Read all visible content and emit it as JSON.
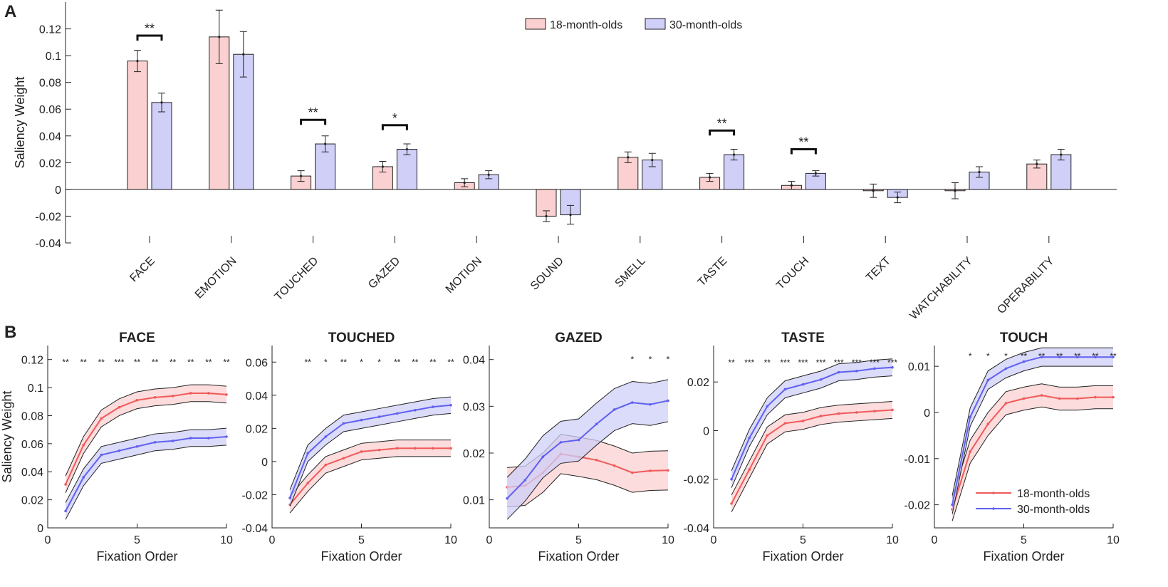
{
  "colors": {
    "c18": "#f08a8a",
    "c30": "#8a8af2",
    "line18": "#f05a5a",
    "line30": "#6060f0",
    "fill18": "#fbd0d0",
    "fill30": "#cfcff8"
  },
  "chart_data": [
    {
      "type": "bar",
      "panel_label": "A",
      "ylabel": "Saliency Weight",
      "ylim": [
        -0.04,
        0.14
      ],
      "yticks": [
        -0.04,
        -0.02,
        0,
        0.02,
        0.04,
        0.06,
        0.08,
        0.1,
        0.12
      ],
      "ytick_labels": [
        "-0.04",
        "-0.02",
        "0",
        "0.02",
        "0.04",
        "0.06",
        "0.08",
        "0.1",
        "0.12"
      ],
      "categories": [
        "FACE",
        "EMOTION",
        "TOUCHED",
        "GAZED",
        "MOTION",
        "SOUND",
        "SMELL",
        "TASTE",
        "TOUCH",
        "TEXT",
        "WATCHABILITY",
        "OPERABILITY"
      ],
      "series": [
        {
          "name": "18-month-olds",
          "values": [
            0.096,
            0.114,
            0.01,
            0.017,
            0.005,
            -0.02,
            0.024,
            0.009,
            0.003,
            -0.001,
            -0.001,
            0.019
          ],
          "errors": [
            0.008,
            0.02,
            0.004,
            0.004,
            0.003,
            0.004,
            0.004,
            0.003,
            0.003,
            0.005,
            0.006,
            0.003
          ]
        },
        {
          "name": "30-month-olds",
          "values": [
            0.065,
            0.101,
            0.034,
            0.03,
            0.011,
            -0.019,
            0.022,
            0.026,
            0.012,
            -0.006,
            0.013,
            0.026
          ],
          "errors": [
            0.007,
            0.017,
            0.006,
            0.004,
            0.003,
            0.007,
            0.005,
            0.004,
            0.002,
            0.004,
            0.004,
            0.004
          ]
        }
      ],
      "significance": [
        {
          "category_index": 0,
          "label": "**",
          "y": 0.115
        },
        {
          "category_index": 2,
          "label": "**",
          "y": 0.052
        },
        {
          "category_index": 3,
          "label": "*",
          "y": 0.048
        },
        {
          "category_index": 7,
          "label": "**",
          "y": 0.044
        },
        {
          "category_index": 8,
          "label": "**",
          "y": 0.03
        }
      ]
    },
    {
      "type": "line",
      "panel_label": "B",
      "title": "FACE",
      "xlabel": "Fixation Order",
      "ylabel": "Saliency Weight",
      "ylim": [
        0,
        0.13
      ],
      "yticks": [
        0,
        0.02,
        0.04,
        0.06,
        0.08,
        0.1,
        0.12
      ],
      "ytick_labels": [
        "0",
        "0.02",
        "0.04",
        "0.06",
        "0.08",
        "0.1",
        "0.12"
      ],
      "xlim": [
        0,
        10
      ],
      "xticks": [
        0,
        5,
        10
      ],
      "xtick_labels": [
        "0",
        "5",
        "10"
      ],
      "x": [
        1,
        2,
        3,
        4,
        5,
        6,
        7,
        8,
        9,
        10
      ],
      "series": [
        {
          "name": "18-month-olds",
          "values": [
            0.031,
            0.059,
            0.078,
            0.086,
            0.091,
            0.093,
            0.094,
            0.096,
            0.096,
            0.095
          ],
          "band": 0.006
        },
        {
          "name": "30-month-olds",
          "values": [
            0.012,
            0.036,
            0.052,
            0.055,
            0.058,
            0.061,
            0.062,
            0.064,
            0.064,
            0.065
          ],
          "band": 0.006
        }
      ],
      "stars": [
        "**",
        "**",
        "**",
        "***",
        "**",
        "**",
        "**",
        "**",
        "**",
        "**"
      ],
      "star_y": 0.118
    },
    {
      "type": "line",
      "title": "TOUCHED",
      "xlabel": "Fixation Order",
      "ylim": [
        -0.04,
        0.07
      ],
      "yticks": [
        -0.04,
        -0.02,
        0,
        0.02,
        0.04,
        0.06
      ],
      "ytick_labels": [
        "-0.04",
        "-0.02",
        "0",
        "0.02",
        "0.04",
        "0.06"
      ],
      "xlim": [
        0,
        10
      ],
      "xticks": [
        0,
        5,
        10
      ],
      "xtick_labels": [
        "0",
        "5",
        "10"
      ],
      "x": [
        1,
        2,
        3,
        4,
        5,
        6,
        7,
        8,
        9,
        10
      ],
      "series": [
        {
          "name": "18-month-olds",
          "values": [
            -0.026,
            -0.013,
            -0.002,
            0.002,
            0.006,
            0.007,
            0.008,
            0.008,
            0.008,
            0.008
          ],
          "band": 0.005
        },
        {
          "name": "30-month-olds",
          "values": [
            -0.022,
            0.005,
            0.015,
            0.023,
            0.025,
            0.027,
            0.029,
            0.031,
            0.033,
            0.034
          ],
          "band": 0.005
        }
      ],
      "stars": [
        "",
        "**",
        "*",
        "**",
        "*",
        "*",
        "**",
        "**",
        "**",
        "**"
      ],
      "star_y": 0.06
    },
    {
      "type": "line",
      "title": "GAZED",
      "xlabel": "Fixation Order",
      "ylim": [
        0.004,
        0.043
      ],
      "yticks": [
        0.01,
        0.02,
        0.03,
        0.04
      ],
      "ytick_labels": [
        "0.01",
        "0.02",
        "0.03",
        "0.04"
      ],
      "xlim": [
        0,
        10
      ],
      "xticks": [
        0,
        5,
        10
      ],
      "xtick_labels": [
        "0",
        "5",
        "10"
      ],
      "x": [
        1,
        2,
        3,
        4,
        5,
        6,
        7,
        8,
        9,
        10
      ],
      "series": [
        {
          "name": "18-month-olds",
          "values": [
            0.0127,
            0.013,
            0.0158,
            0.0198,
            0.0192,
            0.0185,
            0.0173,
            0.0158,
            0.0162,
            0.0163
          ],
          "band": 0.0042
        },
        {
          "name": "30-month-olds",
          "values": [
            0.0103,
            0.0142,
            0.0192,
            0.0223,
            0.0228,
            0.0262,
            0.0293,
            0.0308,
            0.0304,
            0.0312
          ],
          "band": 0.0045
        }
      ],
      "stars": [
        "",
        "",
        "",
        "",
        "",
        "",
        "",
        "*",
        "*",
        "*"
      ],
      "star_y": 0.04
    },
    {
      "type": "line",
      "title": "TASTE",
      "xlabel": "Fixation Order",
      "ylim": [
        -0.04,
        0.035
      ],
      "yticks": [
        -0.04,
        -0.02,
        0,
        0.02
      ],
      "ytick_labels": [
        "-0.04",
        "-0.02",
        "0",
        "0.02"
      ],
      "xlim": [
        0,
        10
      ],
      "xticks": [
        0,
        5,
        10
      ],
      "xtick_labels": [
        "0",
        "5",
        "10"
      ],
      "x": [
        1,
        2,
        3,
        4,
        5,
        6,
        7,
        8,
        9,
        10
      ],
      "series": [
        {
          "name": "18-month-olds",
          "values": [
            -0.03,
            -0.016,
            -0.002,
            0.003,
            0.004,
            0.006,
            0.007,
            0.0075,
            0.008,
            0.0085
          ],
          "band": 0.0035
        },
        {
          "name": "30-month-olds",
          "values": [
            -0.02,
            -0.003,
            0.01,
            0.017,
            0.019,
            0.021,
            0.024,
            0.0245,
            0.0255,
            0.026
          ],
          "band": 0.0035
        }
      ],
      "stars": [
        "**",
        "***",
        "**",
        "***",
        "***",
        "***",
        "***",
        "***",
        "***",
        "***"
      ],
      "star_y": 0.028
    },
    {
      "type": "line",
      "title": "TOUCH",
      "xlabel": "Fixation Order",
      "ylim": [
        -0.025,
        0.0145
      ],
      "yticks": [
        -0.02,
        -0.01,
        0,
        0.01
      ],
      "ytick_labels": [
        "-0.02",
        "-0.01",
        "0",
        "0.01"
      ],
      "xlim": [
        0,
        10
      ],
      "xticks": [
        0,
        5,
        10
      ],
      "xtick_labels": [
        "0",
        "5",
        "10"
      ],
      "x": [
        1,
        2,
        3,
        4,
        5,
        6,
        7,
        8,
        9,
        10
      ],
      "series": [
        {
          "name": "18-month-olds",
          "values": [
            -0.021,
            -0.0085,
            -0.0025,
            0.002,
            0.003,
            0.0037,
            0.003,
            0.003,
            0.0033,
            0.0033
          ],
          "band": 0.0025
        },
        {
          "name": "30-month-olds",
          "values": [
            -0.02,
            -0.001,
            0.007,
            0.0095,
            0.011,
            0.012,
            0.012,
            0.012,
            0.012,
            0.012
          ],
          "band": 0.002
        }
      ],
      "stars": [
        "",
        "*",
        "*",
        "*",
        "**",
        "**",
        "**",
        "**",
        "**",
        "**"
      ],
      "star_y": 0.0122,
      "legend": [
        "18-month-olds",
        "30-month-olds"
      ]
    }
  ]
}
